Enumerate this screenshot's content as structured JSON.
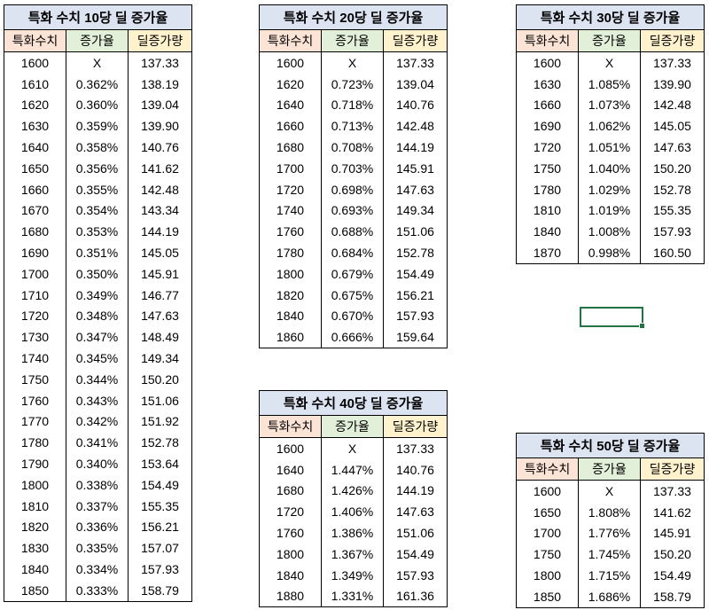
{
  "headers": [
    "특화수치",
    "증가율",
    "딜증가량"
  ],
  "tables": [
    {
      "title": "특화 수치 10당 딜 증가율",
      "rows": [
        [
          "1600",
          "X",
          "137.33"
        ],
        [
          "1610",
          "0.362%",
          "138.19"
        ],
        [
          "1620",
          "0.360%",
          "139.04"
        ],
        [
          "1630",
          "0.359%",
          "139.90"
        ],
        [
          "1640",
          "0.358%",
          "140.76"
        ],
        [
          "1650",
          "0.356%",
          "141.62"
        ],
        [
          "1660",
          "0.355%",
          "142.48"
        ],
        [
          "1670",
          "0.354%",
          "143.34"
        ],
        [
          "1680",
          "0.353%",
          "144.19"
        ],
        [
          "1690",
          "0.351%",
          "145.05"
        ],
        [
          "1700",
          "0.350%",
          "145.91"
        ],
        [
          "1710",
          "0.349%",
          "146.77"
        ],
        [
          "1720",
          "0.348%",
          "147.63"
        ],
        [
          "1730",
          "0.347%",
          "148.49"
        ],
        [
          "1740",
          "0.345%",
          "149.34"
        ],
        [
          "1750",
          "0.344%",
          "150.20"
        ],
        [
          "1760",
          "0.343%",
          "151.06"
        ],
        [
          "1770",
          "0.342%",
          "151.92"
        ],
        [
          "1780",
          "0.341%",
          "152.78"
        ],
        [
          "1790",
          "0.340%",
          "153.64"
        ],
        [
          "1800",
          "0.338%",
          "154.49"
        ],
        [
          "1810",
          "0.337%",
          "155.35"
        ],
        [
          "1820",
          "0.336%",
          "156.21"
        ],
        [
          "1830",
          "0.335%",
          "157.07"
        ],
        [
          "1840",
          "0.334%",
          "157.93"
        ],
        [
          "1850",
          "0.333%",
          "158.79"
        ]
      ]
    },
    {
      "title": "특화 수치 20당 딜 증가율",
      "rows": [
        [
          "1600",
          "X",
          "137.33"
        ],
        [
          "1620",
          "0.723%",
          "139.04"
        ],
        [
          "1640",
          "0.718%",
          "140.76"
        ],
        [
          "1660",
          "0.713%",
          "142.48"
        ],
        [
          "1680",
          "0.708%",
          "144.19"
        ],
        [
          "1700",
          "0.703%",
          "145.91"
        ],
        [
          "1720",
          "0.698%",
          "147.63"
        ],
        [
          "1740",
          "0.693%",
          "149.34"
        ],
        [
          "1760",
          "0.688%",
          "151.06"
        ],
        [
          "1780",
          "0.684%",
          "152.78"
        ],
        [
          "1800",
          "0.679%",
          "154.49"
        ],
        [
          "1820",
          "0.675%",
          "156.21"
        ],
        [
          "1840",
          "0.670%",
          "157.93"
        ],
        [
          "1860",
          "0.666%",
          "159.64"
        ]
      ]
    },
    {
      "title": "특화 수치 30당 딜 증가율",
      "rows": [
        [
          "1600",
          "X",
          "137.33"
        ],
        [
          "1630",
          "1.085%",
          "139.90"
        ],
        [
          "1660",
          "1.073%",
          "142.48"
        ],
        [
          "1690",
          "1.062%",
          "145.05"
        ],
        [
          "1720",
          "1.051%",
          "147.63"
        ],
        [
          "1750",
          "1.040%",
          "150.20"
        ],
        [
          "1780",
          "1.029%",
          "152.78"
        ],
        [
          "1810",
          "1.019%",
          "155.35"
        ],
        [
          "1840",
          "1.008%",
          "157.93"
        ],
        [
          "1870",
          "0.998%",
          "160.50"
        ]
      ]
    },
    {
      "title": "특화 수치 40당 딜 증가율",
      "rows": [
        [
          "1600",
          "X",
          "137.33"
        ],
        [
          "1640",
          "1.447%",
          "140.76"
        ],
        [
          "1680",
          "1.426%",
          "144.19"
        ],
        [
          "1720",
          "1.406%",
          "147.63"
        ],
        [
          "1760",
          "1.386%",
          "151.06"
        ],
        [
          "1800",
          "1.367%",
          "154.49"
        ],
        [
          "1840",
          "1.349%",
          "157.93"
        ],
        [
          "1880",
          "1.331%",
          "161.36"
        ]
      ]
    },
    {
      "title": "특화 수치 50당 딜 증가율",
      "rows": [
        [
          "1600",
          "X",
          "137.33"
        ],
        [
          "1650",
          "1.808%",
          "141.62"
        ],
        [
          "1700",
          "1.776%",
          "145.91"
        ],
        [
          "1750",
          "1.745%",
          "150.20"
        ],
        [
          "1800",
          "1.715%",
          "154.49"
        ],
        [
          "1850",
          "1.686%",
          "158.79"
        ]
      ]
    }
  ],
  "colors": {
    "title_bg": "#dde4f1",
    "hdr_1": "#fbe3d6",
    "hdr_2": "#e2f0d9",
    "hdr_3": "#fff2cc",
    "selection": "#217346"
  }
}
